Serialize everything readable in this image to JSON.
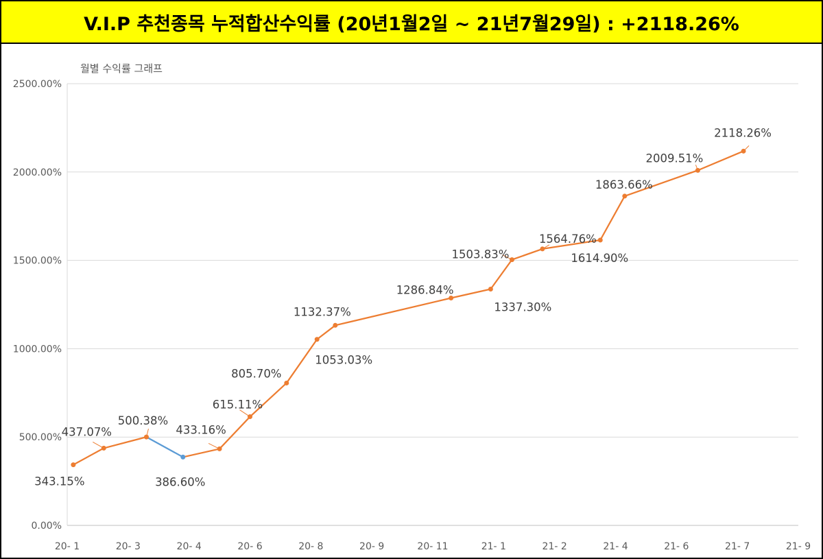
{
  "header": {
    "title": "V.I.P 추천종목 누적합산수익률 (20년1월2일  ~ 21년7월29일) : +2118.26%"
  },
  "chart_data": {
    "type": "line",
    "title": "월별 수익률 그래프",
    "xlabel": "",
    "ylabel": "",
    "ylim": [
      0,
      2500
    ],
    "y_ticks": [
      "0.00%",
      "500.00%",
      "1000.00%",
      "1500.00%",
      "2000.00%",
      "2500.00%"
    ],
    "x_tick_labels": [
      "20- 1",
      "20- 3",
      "20- 4",
      "20- 6",
      "20- 8",
      "20- 9",
      "20- 11",
      "21- 1",
      "21- 2",
      "21- 4",
      "21- 6",
      "21- 7",
      "21- 9"
    ],
    "grid": true,
    "legend": "none",
    "colors": {
      "line": "#ED7D31",
      "down_segment": "#5B9BD5",
      "grid": "#D9D9D9",
      "title_bg": "#FFFF00"
    },
    "points": [
      {
        "x": 0.1,
        "y": 343.15,
        "label": "343.15%"
      },
      {
        "x": 0.6,
        "y": 437.07,
        "label": "437.07%"
      },
      {
        "x": 1.3,
        "y": 500.38,
        "label": "500.38%"
      },
      {
        "x": 1.9,
        "y": 386.6,
        "label": "386.60%"
      },
      {
        "x": 2.5,
        "y": 433.16,
        "label": "433.16%"
      },
      {
        "x": 3.0,
        "y": 615.11,
        "label": "615.11%"
      },
      {
        "x": 3.6,
        "y": 805.7,
        "label": "805.70%"
      },
      {
        "x": 4.1,
        "y": 1053.03,
        "label": "1053.03%"
      },
      {
        "x": 4.4,
        "y": 1132.37,
        "label": "1132.37%"
      },
      {
        "x": 6.3,
        "y": 1286.84,
        "label": "1286.84%"
      },
      {
        "x": 6.95,
        "y": 1337.3,
        "label": "1337.30%"
      },
      {
        "x": 7.3,
        "y": 1503.83,
        "label": "1503.83%"
      },
      {
        "x": 7.8,
        "y": 1564.76,
        "label": "1564.76%"
      },
      {
        "x": 8.75,
        "y": 1614.9,
        "label": "1614.90%"
      },
      {
        "x": 9.15,
        "y": 1863.66,
        "label": "1863.66%"
      },
      {
        "x": 10.35,
        "y": 2009.51,
        "label": "2009.51%"
      },
      {
        "x": 11.1,
        "y": 2118.26,
        "label": "2118.26%"
      }
    ]
  }
}
